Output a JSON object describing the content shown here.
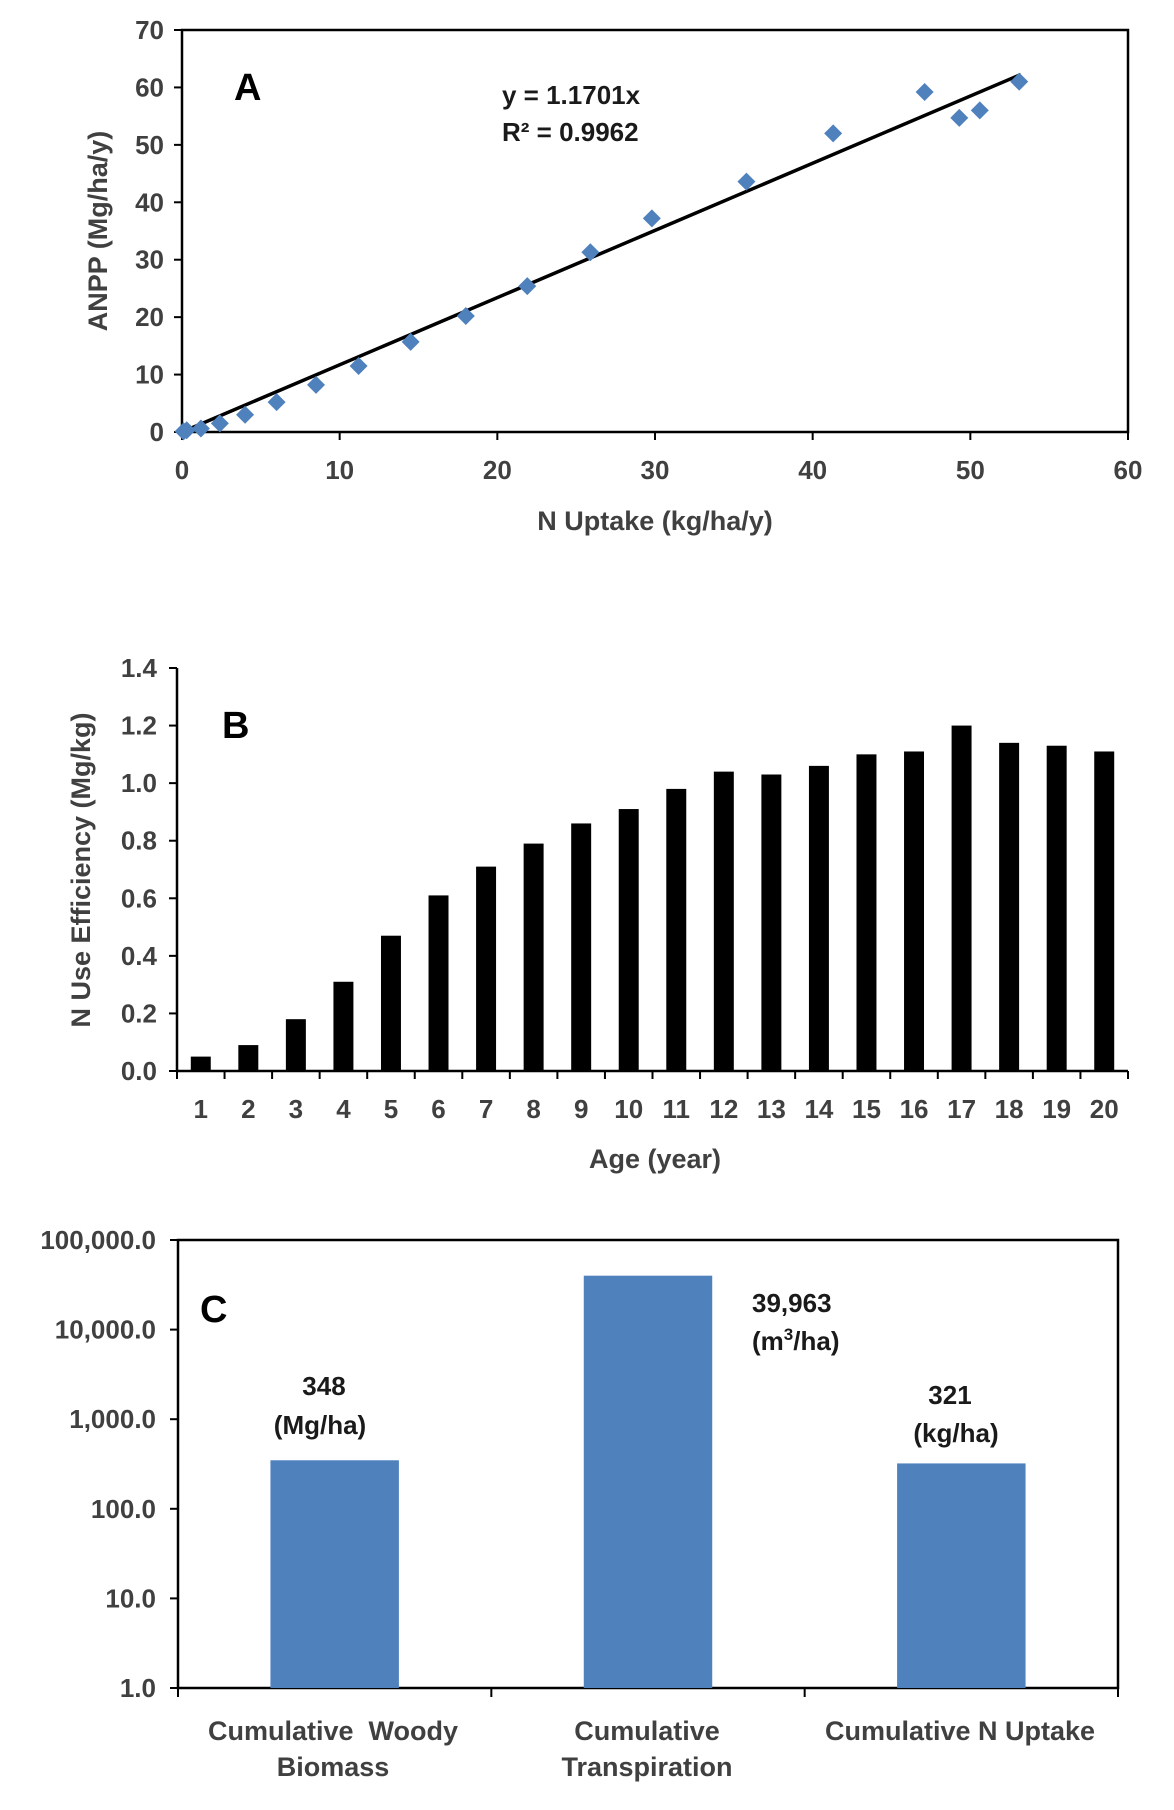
{
  "chart_data": [
    {
      "type": "scatter",
      "panel_label": "A",
      "xlabel": "N Uptake (kg/ha/y)",
      "ylabel": "ANPP (Mg/ha/y)",
      "xlim": [
        0,
        60
      ],
      "ylim": [
        0,
        70
      ],
      "xticks": [
        "0",
        "10",
        "20",
        "30",
        "40",
        "50",
        "60"
      ],
      "yticks": [
        "0",
        "10",
        "20",
        "30",
        "40",
        "50",
        "60",
        "70"
      ],
      "x": [
        0.1,
        0.3,
        1.2,
        2.4,
        4.0,
        6.0,
        8.5,
        11.2,
        14.5,
        18.0,
        21.9,
        25.9,
        29.8,
        35.8,
        41.3,
        47.1,
        49.3,
        50.6,
        53.1
      ],
      "y": [
        0.1,
        0.3,
        0.6,
        1.5,
        3.0,
        5.2,
        8.2,
        11.5,
        15.7,
        20.2,
        25.4,
        31.3,
        37.2,
        43.6,
        52.0,
        59.2,
        54.7,
        56.0,
        61.0
      ],
      "trendline": {
        "slope": 1.1701,
        "x_range": [
          0.3,
          53.2
        ]
      },
      "equation": "y = 1.1701x",
      "r2_text": "R² = 0.9962",
      "marker_color": "#4f81bd",
      "line_color": "#000000"
    },
    {
      "type": "bar",
      "panel_label": "B",
      "xlabel": "Age (year)",
      "ylabel": "N Use Efficiency (Mg/kg)",
      "ylim": [
        0,
        1.4
      ],
      "yticks": [
        "0.0",
        "0.2",
        "0.4",
        "0.6",
        "0.8",
        "1.0",
        "1.2",
        "1.4"
      ],
      "categories": [
        "1",
        "2",
        "3",
        "4",
        "5",
        "6",
        "7",
        "8",
        "9",
        "10",
        "11",
        "12",
        "13",
        "14",
        "15",
        "16",
        "17",
        "18",
        "19",
        "20"
      ],
      "values": [
        0.05,
        0.09,
        0.18,
        0.31,
        0.47,
        0.61,
        0.71,
        0.79,
        0.86,
        0.91,
        0.98,
        1.04,
        1.03,
        1.06,
        1.1,
        1.11,
        1.2,
        1.14,
        1.13,
        1.11
      ],
      "bar_color": "#000000"
    },
    {
      "type": "bar",
      "panel_label": "C",
      "yscale": "log",
      "ylim": [
        1,
        100000
      ],
      "yticks": [
        "1.0",
        "10.0",
        "100.0",
        "1,000.0",
        "10,000.0",
        "100,000.0"
      ],
      "categories": [
        {
          "line1": "Cumulative  Woody",
          "line2": "Biomass"
        },
        {
          "line1": "Cumulative",
          "line2": "Transpiration"
        },
        {
          "line1": "Cumulative N Uptake",
          "line2": ""
        }
      ],
      "values": [
        348,
        39963,
        321
      ],
      "labels": [
        {
          "value": "348",
          "unit": "(Mg/ha)"
        },
        {
          "value": "39,963",
          "unit_pre": "(m",
          "unit_sup": "3",
          "unit_post": "/ha)"
        },
        {
          "value": "321",
          "unit": "(kg/ha)"
        }
      ],
      "bar_color": "#4f81bd"
    }
  ]
}
